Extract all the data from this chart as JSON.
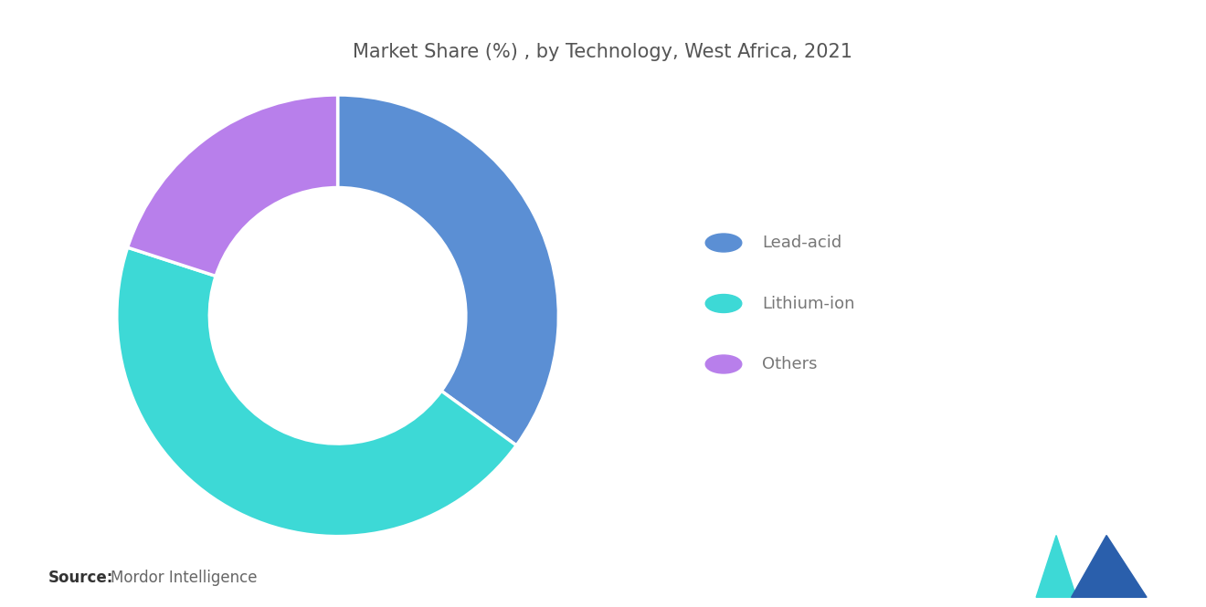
{
  "title": "Market Share (%) , by Technology, West Africa, 2021",
  "title_fontsize": 15,
  "title_color": "#555555",
  "labels": [
    "Lead-acid",
    "Lithium-ion",
    "Others"
  ],
  "values": [
    35,
    45,
    20
  ],
  "colors": [
    "#5B8FD4",
    "#3DD9D6",
    "#B87FEB"
  ],
  "legend_fontsize": 13,
  "legend_text_color": "#777777",
  "source_bold": "Source:",
  "source_text": "Mordor Intelligence",
  "source_fontsize": 12,
  "background_color": "#ffffff",
  "donut_width": 0.42,
  "startangle": 90
}
